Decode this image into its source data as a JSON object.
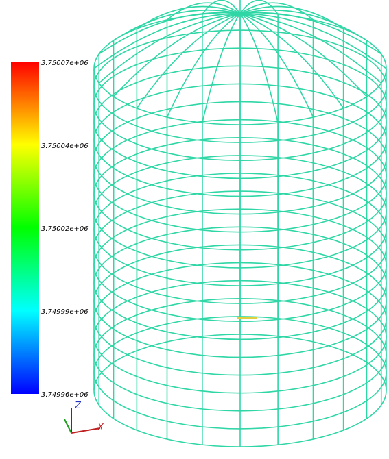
{
  "colorbar": {
    "labels": [
      "3.75007e+06",
      "3.75004e+06",
      "3.75002e+06",
      "3.74999e+06",
      "3.74996e+06"
    ]
  },
  "axes": {
    "z": "Z",
    "x": "X"
  }
}
